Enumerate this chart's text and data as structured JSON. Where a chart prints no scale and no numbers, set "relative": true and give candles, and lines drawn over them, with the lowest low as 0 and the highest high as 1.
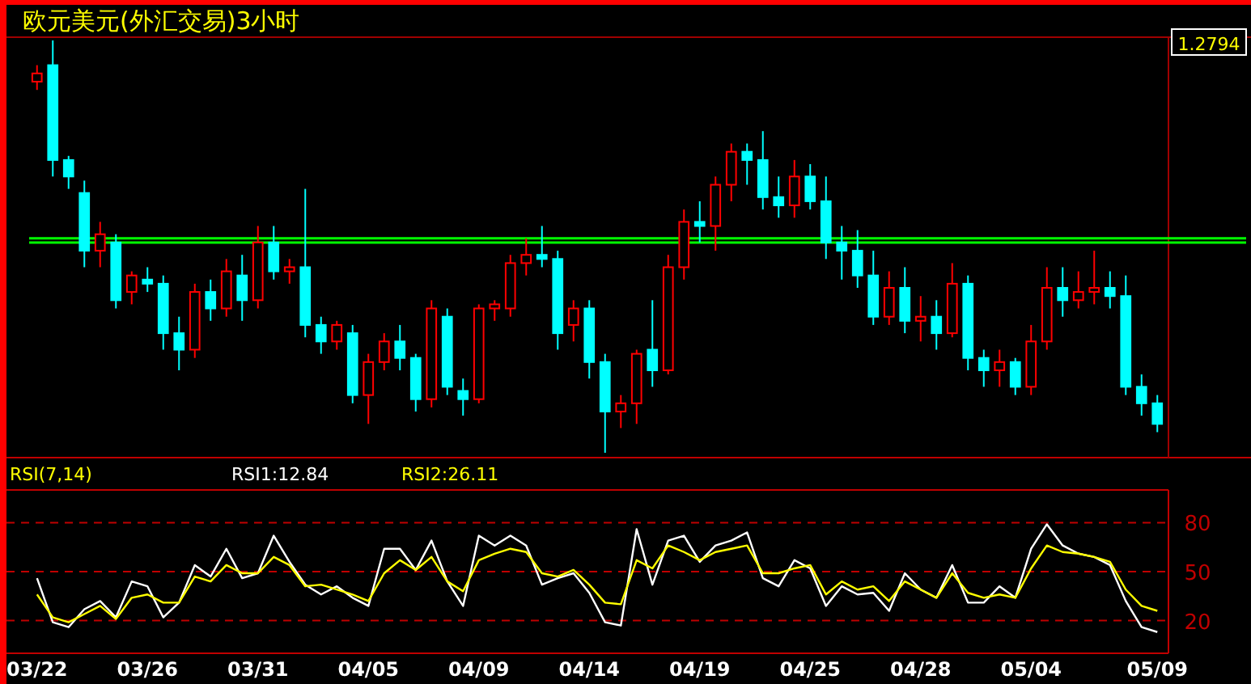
{
  "chart_data": [
    {
      "type": "candlestick",
      "title": "欧元美元(外汇交易)3小时",
      "relative": true,
      "categories": [
        null,
        null,
        null,
        null,
        null,
        null,
        null,
        null,
        null,
        null,
        null,
        null,
        null,
        null,
        null,
        null,
        null,
        null,
        null,
        null,
        null,
        null,
        null,
        null,
        null,
        null,
        null,
        null,
        null,
        null,
        null,
        null,
        null,
        null,
        null,
        null,
        null,
        null,
        null,
        null,
        null,
        null,
        null,
        null,
        null,
        null,
        null,
        null,
        null,
        null,
        null,
        null,
        null,
        null,
        null,
        null,
        null,
        null,
        null,
        null,
        null,
        null,
        null,
        null,
        null,
        null,
        null,
        null,
        null,
        null,
        null,
        null
      ],
      "ohlc": [
        [
          0.9,
          0.94,
          0.88,
          0.92
        ],
        [
          0.94,
          1.0,
          0.67,
          0.71
        ],
        [
          0.71,
          0.72,
          0.64,
          0.67
        ],
        [
          0.63,
          0.66,
          0.45,
          0.49
        ],
        [
          0.49,
          0.56,
          0.45,
          0.53
        ],
        [
          0.51,
          0.53,
          0.35,
          0.37
        ],
        [
          0.39,
          0.44,
          0.36,
          0.43
        ],
        [
          0.42,
          0.45,
          0.39,
          0.41
        ],
        [
          0.41,
          0.43,
          0.25,
          0.29
        ],
        [
          0.29,
          0.33,
          0.2,
          0.25
        ],
        [
          0.25,
          0.41,
          0.23,
          0.39
        ],
        [
          0.39,
          0.42,
          0.32,
          0.35
        ],
        [
          0.35,
          0.47,
          0.33,
          0.44
        ],
        [
          0.43,
          0.48,
          0.32,
          0.37
        ],
        [
          0.37,
          0.55,
          0.35,
          0.51
        ],
        [
          0.51,
          0.55,
          0.42,
          0.44
        ],
        [
          0.44,
          0.47,
          0.41,
          0.45
        ],
        [
          0.45,
          0.64,
          0.28,
          0.31
        ],
        [
          0.31,
          0.33,
          0.24,
          0.27
        ],
        [
          0.27,
          0.32,
          0.25,
          0.31
        ],
        [
          0.29,
          0.31,
          0.12,
          0.14
        ],
        [
          0.14,
          0.24,
          0.07,
          0.22
        ],
        [
          0.22,
          0.29,
          0.2,
          0.27
        ],
        [
          0.27,
          0.31,
          0.2,
          0.23
        ],
        [
          0.23,
          0.24,
          0.1,
          0.13
        ],
        [
          0.13,
          0.37,
          0.11,
          0.35
        ],
        [
          0.33,
          0.35,
          0.14,
          0.16
        ],
        [
          0.15,
          0.18,
          0.09,
          0.13
        ],
        [
          0.13,
          0.36,
          0.12,
          0.35
        ],
        [
          0.35,
          0.37,
          0.32,
          0.36
        ],
        [
          0.35,
          0.48,
          0.33,
          0.46
        ],
        [
          0.46,
          0.52,
          0.43,
          0.48
        ],
        [
          0.48,
          0.55,
          0.45,
          0.47
        ],
        [
          0.47,
          0.49,
          0.25,
          0.29
        ],
        [
          0.31,
          0.37,
          0.27,
          0.35
        ],
        [
          0.35,
          0.37,
          0.18,
          0.22
        ],
        [
          0.22,
          0.24,
          0,
          0.1
        ],
        [
          0.1,
          0.14,
          0.06,
          0.12
        ],
        [
          0.12,
          0.25,
          0.07,
          0.24
        ],
        [
          0.25,
          0.37,
          0.16,
          0.2
        ],
        [
          0.2,
          0.48,
          0.19,
          0.45
        ],
        [
          0.45,
          0.59,
          0.42,
          0.56
        ],
        [
          0.56,
          0.61,
          0.51,
          0.55
        ],
        [
          0.55,
          0.67,
          0.49,
          0.65
        ],
        [
          0.65,
          0.75,
          0.61,
          0.73
        ],
        [
          0.73,
          0.75,
          0.65,
          0.71
        ],
        [
          0.71,
          0.78,
          0.59,
          0.62
        ],
        [
          0.62,
          0.67,
          0.57,
          0.6
        ],
        [
          0.6,
          0.71,
          0.57,
          0.67
        ],
        [
          0.67,
          0.7,
          0.59,
          0.61
        ],
        [
          0.61,
          0.67,
          0.47,
          0.51
        ],
        [
          0.51,
          0.55,
          0.42,
          0.49
        ],
        [
          0.49,
          0.54,
          0.4,
          0.43
        ],
        [
          0.43,
          0.49,
          0.31,
          0.33
        ],
        [
          0.33,
          0.44,
          0.31,
          0.4
        ],
        [
          0.4,
          0.45,
          0.29,
          0.32
        ],
        [
          0.32,
          0.38,
          0.27,
          0.33
        ],
        [
          0.33,
          0.37,
          0.25,
          0.29
        ],
        [
          0.29,
          0.46,
          0.28,
          0.41
        ],
        [
          0.41,
          0.43,
          0.2,
          0.23
        ],
        [
          0.23,
          0.25,
          0.16,
          0.2
        ],
        [
          0.2,
          0.25,
          0.16,
          0.22
        ],
        [
          0.22,
          0.23,
          0.14,
          0.16
        ],
        [
          0.16,
          0.31,
          0.14,
          0.27
        ],
        [
          0.27,
          0.45,
          0.25,
          0.4
        ],
        [
          0.4,
          0.45,
          0.33,
          0.37
        ],
        [
          0.37,
          0.44,
          0.35,
          0.39
        ],
        [
          0.39,
          0.49,
          0.36,
          0.4
        ],
        [
          0.4,
          0.44,
          0.35,
          0.38
        ],
        [
          0.38,
          0.43,
          0.14,
          0.16
        ],
        [
          0.16,
          0.19,
          0.09,
          0.12
        ],
        [
          0.12,
          0.14,
          0.05,
          0.07
        ]
      ],
      "ref_lines": [
        {
          "axis": "y",
          "value": 0.52,
          "color": "#00ff00"
        },
        {
          "axis": "y",
          "value": 0.51,
          "color": "#00ff00"
        }
      ],
      "annotations": [
        "1.2794"
      ]
    },
    {
      "type": "line",
      "title": "RSI(7,14)",
      "legend": "top",
      "grid": "y",
      "marker": "none",
      "line_style": "solid",
      "ylim": [
        0,
        100
      ],
      "yticks": [
        20,
        50,
        80
      ],
      "categories": [
        "03/22",
        null,
        null,
        null,
        null,
        null,
        null,
        "03/26",
        null,
        null,
        null,
        null,
        null,
        null,
        "03/31",
        null,
        null,
        null,
        null,
        null,
        null,
        "04/05",
        null,
        null,
        null,
        null,
        null,
        null,
        "04/09",
        null,
        null,
        null,
        null,
        null,
        null,
        "04/14",
        null,
        null,
        null,
        null,
        null,
        null,
        "04/19",
        null,
        null,
        null,
        null,
        null,
        null,
        "04/25",
        null,
        null,
        null,
        null,
        null,
        null,
        "04/28",
        null,
        null,
        null,
        null,
        null,
        null,
        "05/04",
        null,
        null,
        null,
        null,
        null,
        null,
        null,
        "05/09"
      ],
      "series": [
        {
          "name": "RSI1:12.84",
          "color": "#ffffff",
          "values": [
            46,
            19,
            16,
            27,
            32,
            22,
            44,
            41,
            22,
            31,
            54,
            47,
            64,
            46,
            49,
            72,
            56,
            42,
            36,
            41,
            34,
            29,
            64,
            64,
            51,
            69,
            44,
            29,
            72,
            66,
            72,
            66,
            42,
            46,
            49,
            37,
            19,
            17,
            76,
            42,
            69,
            72,
            56,
            66,
            69,
            74,
            46,
            41,
            57,
            52,
            29,
            41,
            36,
            37,
            26,
            49,
            39,
            34,
            54,
            31,
            31,
            41,
            34,
            64,
            79,
            66,
            61,
            59,
            54,
            32,
            16,
            13
          ]
        },
        {
          "name": "RSI2:26.11",
          "color": "#ffff00",
          "values": [
            36,
            22,
            19,
            24,
            29,
            21,
            34,
            36,
            31,
            31,
            47,
            44,
            54,
            49,
            49,
            59,
            54,
            41,
            42,
            39,
            36,
            32,
            49,
            57,
            51,
            59,
            44,
            38,
            57,
            61,
            64,
            62,
            49,
            47,
            51,
            42,
            31,
            30,
            57,
            52,
            66,
            62,
            57,
            62,
            64,
            66,
            49,
            49,
            52,
            54,
            36,
            44,
            39,
            41,
            32,
            44,
            39,
            34,
            49,
            37,
            34,
            36,
            34,
            52,
            66,
            62,
            61,
            59,
            56,
            39,
            29,
            26
          ]
        }
      ]
    }
  ]
}
